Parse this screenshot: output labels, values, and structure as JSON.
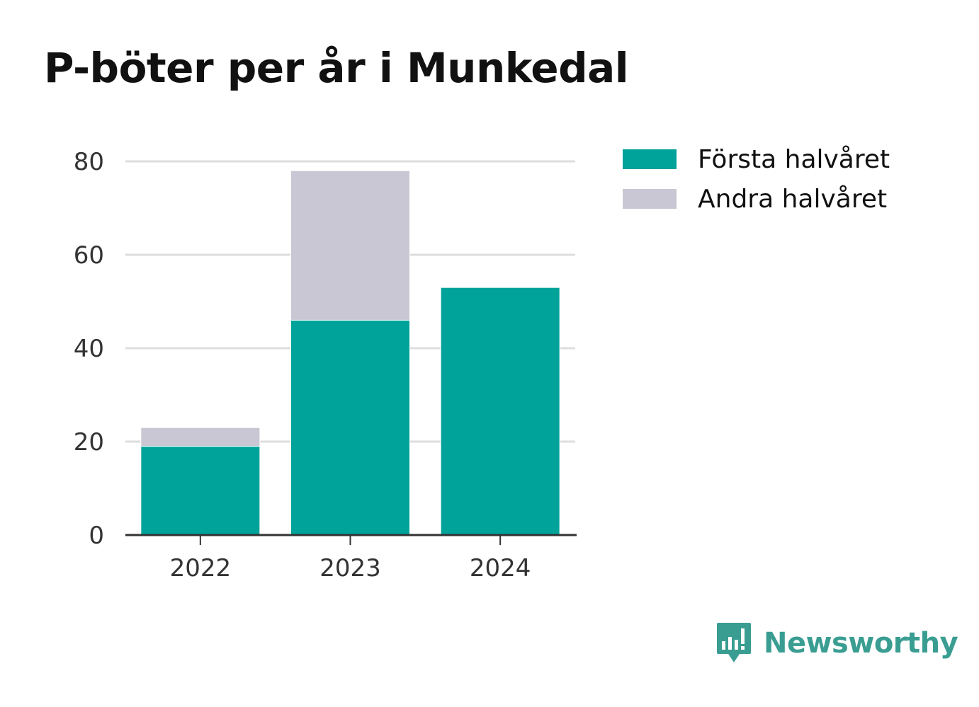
{
  "title": "P-böter per år i Munkedal",
  "brand": {
    "name": "Newsworthy",
    "icon": "bar-chart-speech-bubble-icon",
    "color": "#3a9d92"
  },
  "colors": {
    "first_half": "#00a39a",
    "second_half": "#c8c7d3",
    "grid": "#dedede",
    "axis": "#333333"
  },
  "chart_data": {
    "type": "bar",
    "stacked": true,
    "title": "P-böter per år i Munkedal",
    "categories": [
      "2022",
      "2023",
      "2024"
    ],
    "series": [
      {
        "name": "Första halvåret",
        "values": [
          19,
          46,
          53
        ],
        "color": "#00a39a"
      },
      {
        "name": "Andra halvåret",
        "values": [
          4,
          32,
          0
        ],
        "color": "#c8c7d3"
      }
    ],
    "ylim": [
      0,
      80
    ],
    "yticks": [
      "0",
      "20",
      "40",
      "60",
      "80"
    ],
    "grid": true,
    "legend_position": "right"
  }
}
